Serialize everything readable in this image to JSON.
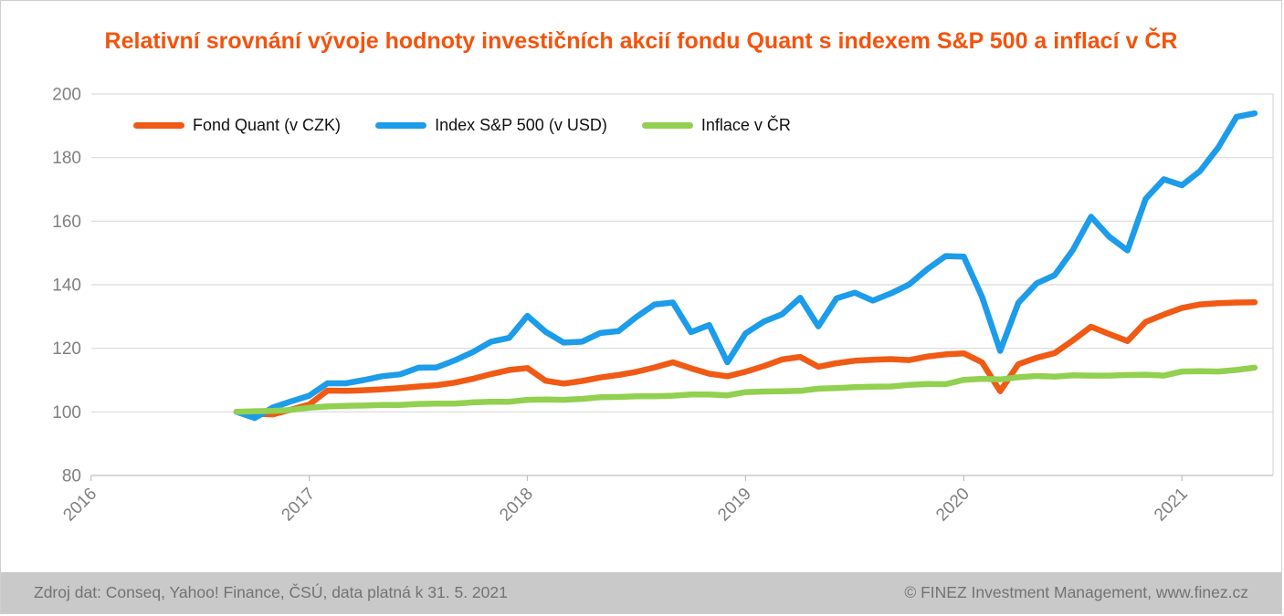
{
  "title": "Relativní srovnání vývoje hodnoty investičních akcií fondu Quant s indexem S&P 500 a inflací v ČR",
  "colors": {
    "title": "#f4530c",
    "grid": "#d9d9d9",
    "axis": "#bfbfbf",
    "axis_text": "#808080",
    "footer_bg": "#c9c9c9",
    "footer_text": "#737373"
  },
  "legend": [
    {
      "label": "Fond Quant (v CZK)",
      "color": "#f05a14"
    },
    {
      "label": "Index S&P 500 (v USD)",
      "color": "#1c9cea"
    },
    {
      "label": "Inflace v ČR",
      "color": "#92d050"
    }
  ],
  "footer": {
    "source": "Zdroj dat: Conseq, Yahoo! Finance, ČSÚ, data platná k 31. 5. 2021",
    "copyright": "© FINEZ Investment Management, www.finez.cz"
  },
  "chart_data": {
    "type": "line",
    "title": "Relativní srovnání vývoje hodnoty investičních akcií fondu Quant s indexem S&P 500 a inflací v ČR",
    "xlabel": "",
    "ylabel": "",
    "ylim": [
      80,
      200
    ],
    "yticks": [
      80,
      100,
      120,
      140,
      160,
      180,
      200
    ],
    "xticks_years": [
      "2016",
      "2017",
      "2018",
      "2019",
      "2020",
      "2021"
    ],
    "grid": true,
    "legend_position": "top-left",
    "base_value": 100,
    "x": [
      "2016-09",
      "2016-10",
      "2016-11",
      "2016-12",
      "2017-01",
      "2017-02",
      "2017-03",
      "2017-04",
      "2017-05",
      "2017-06",
      "2017-07",
      "2017-08",
      "2017-09",
      "2017-10",
      "2017-11",
      "2017-12",
      "2018-01",
      "2018-02",
      "2018-03",
      "2018-04",
      "2018-05",
      "2018-06",
      "2018-07",
      "2018-08",
      "2018-09",
      "2018-10",
      "2018-11",
      "2018-12",
      "2019-01",
      "2019-02",
      "2019-03",
      "2019-04",
      "2019-05",
      "2019-06",
      "2019-07",
      "2019-08",
      "2019-09",
      "2019-10",
      "2019-11",
      "2019-12",
      "2020-01",
      "2020-02",
      "2020-03",
      "2020-04",
      "2020-05",
      "2020-06",
      "2020-07",
      "2020-08",
      "2020-09",
      "2020-10",
      "2020-11",
      "2020-12",
      "2021-01",
      "2021-02",
      "2021-03",
      "2021-04",
      "2021-05"
    ],
    "series": [
      {
        "id": "fond_quant",
        "name": "Fond Quant (v CZK)",
        "color": "#f05a14",
        "values": [
          100.0,
          99.4,
          99.2,
          100.7,
          102.3,
          106.7,
          106.6,
          106.8,
          107.1,
          107.5,
          108.0,
          108.4,
          109.2,
          110.4,
          111.9,
          113.2,
          113.8,
          109.8,
          108.9,
          109.7,
          110.8,
          111.6,
          112.6,
          114.0,
          115.6,
          113.7,
          112.0,
          111.2,
          112.6,
          114.4,
          116.5,
          117.3,
          114.2,
          115.3,
          116.1,
          116.4,
          116.6,
          116.3,
          117.4,
          118.1,
          118.4,
          115.6,
          106.5,
          115.0,
          117.0,
          118.5,
          122.5,
          126.8,
          124.5,
          122.3,
          128.3,
          130.6,
          132.7,
          133.8,
          134.2,
          134.4,
          134.5
        ]
      },
      {
        "id": "index_sp500",
        "name": "Index S&P 500 (v USD)",
        "color": "#1c9cea",
        "values": [
          100.0,
          98.1,
          101.4,
          103.3,
          105.1,
          109.0,
          109.0,
          110.0,
          111.2,
          111.8,
          113.9,
          114.0,
          116.2,
          118.8,
          122.1,
          123.3,
          130.2,
          125.2,
          121.8,
          122.1,
          124.8,
          125.4,
          129.9,
          133.8,
          134.4,
          125.1,
          127.3,
          115.6,
          124.7,
          128.4,
          130.7,
          135.9,
          126.9,
          135.7,
          137.5,
          135.0,
          137.3,
          140.1,
          144.9,
          149.0,
          148.8,
          136.2,
          119.2,
          134.3,
          140.4,
          143.0,
          150.9,
          161.4,
          155.1,
          150.8,
          167.0,
          173.2,
          171.3,
          175.8,
          183.2,
          192.8,
          193.9
        ]
      },
      {
        "id": "inflace_cr",
        "name": "Inflace v ČR",
        "color": "#92d050",
        "values": [
          100.0,
          100.2,
          100.3,
          100.6,
          101.3,
          101.7,
          101.9,
          102.0,
          102.2,
          102.2,
          102.5,
          102.6,
          102.6,
          103.0,
          103.2,
          103.2,
          103.8,
          103.9,
          103.8,
          104.1,
          104.6,
          104.7,
          104.9,
          104.9,
          105.1,
          105.5,
          105.5,
          105.2,
          106.2,
          106.4,
          106.5,
          106.6,
          107.3,
          107.5,
          107.8,
          107.9,
          108.0,
          108.5,
          108.8,
          108.7,
          110.1,
          110.4,
          110.2,
          110.9,
          111.3,
          111.1,
          111.5,
          111.4,
          111.4,
          111.6,
          111.7,
          111.4,
          112.7,
          112.8,
          112.7,
          113.2,
          113.9
        ]
      }
    ]
  }
}
